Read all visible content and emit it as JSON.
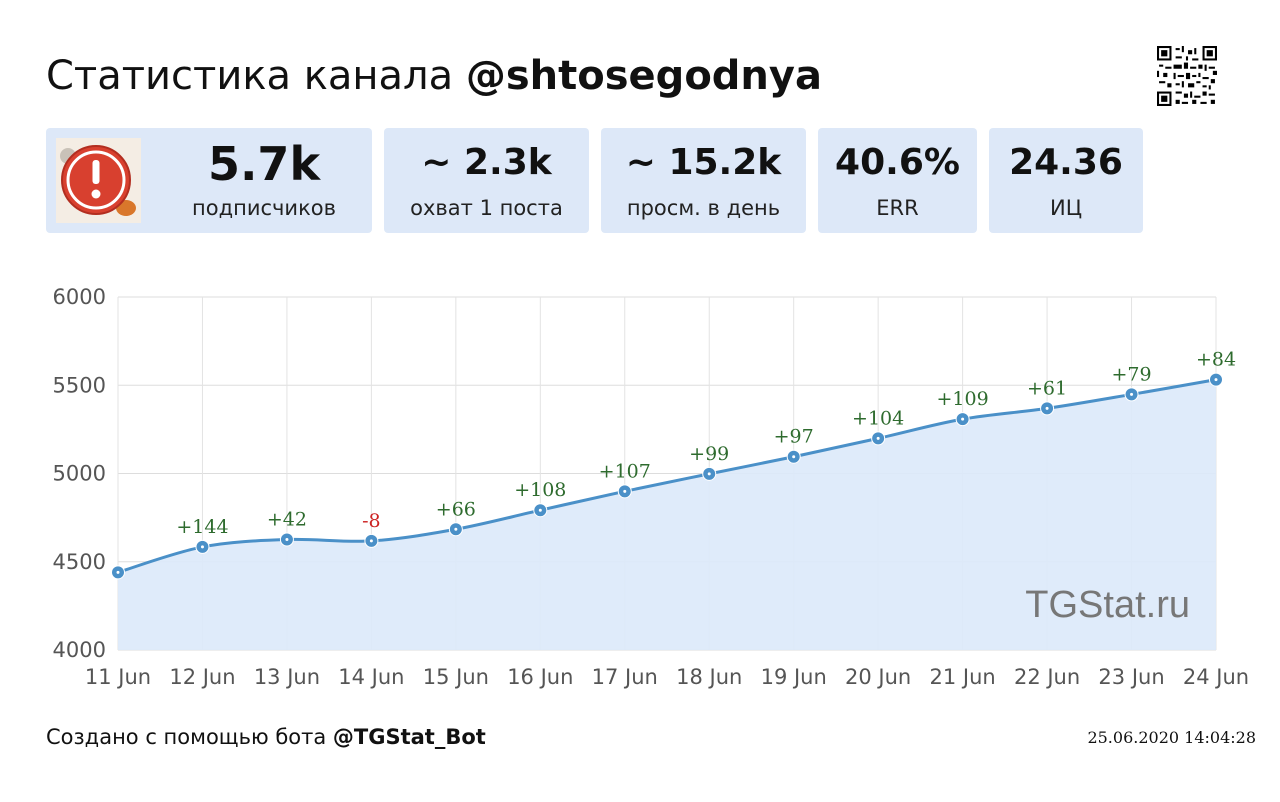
{
  "header": {
    "title_prefix": "Статистика канала",
    "channel": "@shtosegodnya"
  },
  "stats": {
    "subscribers": {
      "value": "5.7k",
      "label": "подписчиков"
    },
    "reach": {
      "value": "~ 2.3k",
      "label": "охват 1 поста"
    },
    "daily_views": {
      "value": "~ 15.2k",
      "label": "просм. в день"
    },
    "err": {
      "value": "40.6%",
      "label": "ERR"
    },
    "ic": {
      "value": "24.36",
      "label": "ИЦ"
    }
  },
  "watermark": "TGStat.ru",
  "footer": {
    "prefix": "Создано с помощью бота",
    "bot": "@TGStat_Bot",
    "timestamp": "25.06.2020 14:04:28"
  },
  "colors": {
    "line": "#4a90c8",
    "fill": "#dce9fa",
    "positive": "#2e6b2e",
    "negative": "#cc2222",
    "card_bg": "#dde8f8"
  },
  "chart_data": {
    "type": "area",
    "x": [
      "11 Jun",
      "12 Jun",
      "13 Jun",
      "14 Jun",
      "15 Jun",
      "16 Jun",
      "17 Jun",
      "18 Jun",
      "19 Jun",
      "20 Jun",
      "21 Jun",
      "22 Jun",
      "23 Jun",
      "24 Jun"
    ],
    "series": [
      {
        "values": [
          4440,
          4584,
          4626,
          4618,
          4684,
          4792,
          4899,
          4998,
          5095,
          5199,
          5308,
          5369,
          5448,
          5532
        ],
        "labels": [
          "",
          "+144",
          "+42",
          "-8",
          "+66",
          "+108",
          "+107",
          "+99",
          "+97",
          "+104",
          "+109",
          "+61",
          "+79",
          "+84"
        ]
      }
    ],
    "yticks": [
      4000,
      4500,
      5000,
      5500,
      6000
    ],
    "ylim": [
      4000,
      6000
    ],
    "grid": true
  }
}
